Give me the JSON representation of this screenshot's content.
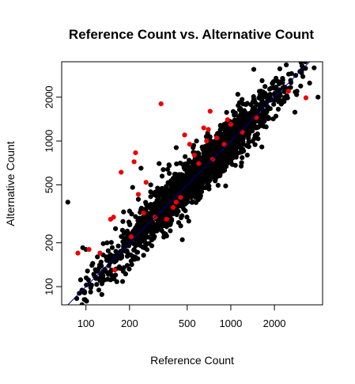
{
  "chart_data": {
    "type": "scatter",
    "title": "Reference Count vs. Alternative Count",
    "xlabel": "Reference Count",
    "ylabel": "Alternative Count",
    "x_scale": "log",
    "y_scale": "log",
    "xlim": [
      68,
      4300
    ],
    "ylim": [
      75,
      3500
    ],
    "x_ticks": [
      100,
      200,
      500,
      1000,
      2000
    ],
    "y_ticks": [
      100,
      200,
      500,
      1000,
      2000
    ],
    "x_tick_labels": [
      "100",
      "200",
      "500",
      "1000",
      "2000"
    ],
    "y_tick_labels": [
      "100",
      "200",
      "500",
      "1000",
      "2000"
    ],
    "grid": false,
    "legend": "none",
    "reference_line": {
      "slope": 1,
      "intercept": 0,
      "color": "#00008b"
    },
    "colors": {
      "default_points": "#000000",
      "highlight_points": "#ee0000"
    },
    "cloud": {
      "n": 1700,
      "x_min": 80,
      "x_max": 3800,
      "log_scatter": 0.085,
      "seed": 12345
    },
    "series": [
      {
        "color": "#000000",
        "x": [
          75,
          90,
          95,
          100,
          110,
          120,
          125,
          140,
          150,
          160,
          175,
          185,
          200,
          210,
          230,
          250,
          270,
          300,
          320,
          350,
          380,
          400,
          450,
          480,
          520,
          560,
          600,
          650,
          700,
          750,
          800,
          850,
          900,
          950,
          1000,
          1100,
          1200,
          1300,
          1400,
          1500,
          1600,
          1800,
          2000,
          2200,
          2500,
          3000,
          3500,
          4000,
          140,
          160,
          180,
          200,
          250,
          300,
          350,
          400,
          500,
          600,
          700,
          800,
          1000,
          1200,
          1500,
          2000,
          210,
          240,
          280,
          320,
          420,
          580,
          900,
          1300
        ],
        "y": [
          380,
          90,
          185,
          180,
          140,
          160,
          110,
          160,
          130,
          120,
          170,
          200,
          230,
          220,
          260,
          280,
          240,
          320,
          340,
          380,
          360,
          420,
          450,
          500,
          560,
          520,
          640,
          680,
          700,
          720,
          830,
          880,
          900,
          1050,
          1000,
          1150,
          1100,
          1300,
          1350,
          1500,
          1400,
          1700,
          1900,
          2050,
          2300,
          3000,
          2500,
          2000,
          200,
          250,
          280,
          330,
          300,
          360,
          420,
          380,
          620,
          720,
          900,
          650,
          1250,
          1450,
          1250,
          2300,
          480,
          650,
          500,
          700,
          900,
          1000,
          1300,
          800
        ]
      },
      {
        "color": "#ee0000",
        "x": [
          88,
          105,
          125,
          148,
          155,
          158,
          175,
          205,
          215,
          220,
          230,
          250,
          260,
          300,
          330,
          360,
          400,
          420,
          450,
          480,
          520,
          560,
          600,
          650,
          680,
          700,
          720,
          750,
          800,
          900,
          950,
          1000,
          1200,
          1500,
          2500,
          3300
        ],
        "y": [
          170,
          180,
          170,
          290,
          300,
          130,
          610,
          220,
          720,
          830,
          430,
          320,
          520,
          300,
          1800,
          290,
          350,
          380,
          410,
          1100,
          950,
          800,
          700,
          1230,
          1000,
          1200,
          1600,
          750,
          1050,
          950,
          1400,
          1300,
          1150,
          1450,
          2200,
          1980
        ]
      }
    ]
  }
}
